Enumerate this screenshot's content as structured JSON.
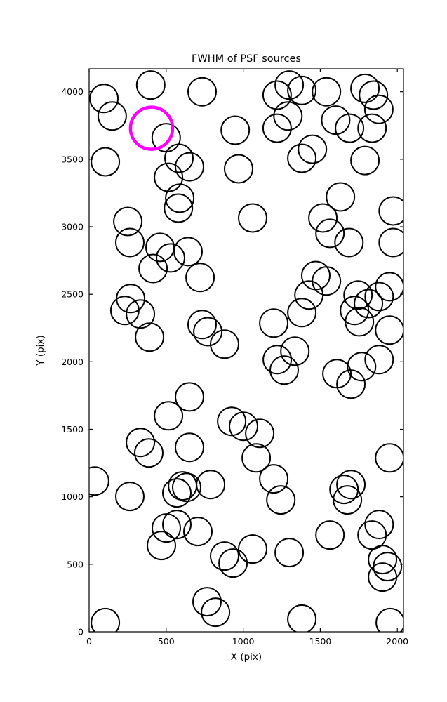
{
  "figure": {
    "title": "FWHM of PSF sources",
    "xlabel": "X (pix)",
    "ylabel": "Y (pix)"
  },
  "chart_data": {
    "type": "scatter",
    "title": "FWHM of PSF sources",
    "xlabel": "X (pix)",
    "ylabel": "Y (pix)",
    "xlim": [
      0,
      2040
    ],
    "ylim": [
      0,
      4170
    ],
    "x_ticks": [
      0,
      500,
      1000,
      1500,
      2000
    ],
    "y_ticks": [
      0,
      500,
      1000,
      1500,
      2000,
      2500,
      3000,
      3500,
      4000
    ],
    "grid": false,
    "legend": false,
    "marker": {
      "shape": "circle",
      "fill": "none",
      "stroke": "#000000",
      "stroke_width": 2,
      "radius_px": 20
    },
    "highlight": {
      "x": 405,
      "y": 3730,
      "stroke": "#ff00ff",
      "stroke_width": 4.5,
      "radius_px": 30,
      "note": "magenta-circled PSF source"
    },
    "points": [
      [
        96,
        3950
      ],
      [
        150,
        3820
      ],
      [
        400,
        4050
      ],
      [
        733,
        4000
      ],
      [
        500,
        3660
      ],
      [
        1220,
        3975
      ],
      [
        1298,
        4050
      ],
      [
        1380,
        4010
      ],
      [
        1540,
        4000
      ],
      [
        1790,
        4025
      ],
      [
        1845,
        3975
      ],
      [
        1880,
        3870
      ],
      [
        1290,
        3820
      ],
      [
        1220,
        3730
      ],
      [
        1600,
        3790
      ],
      [
        1690,
        3730
      ],
      [
        1836,
        3730
      ],
      [
        948,
        3715
      ],
      [
        583,
        3507
      ],
      [
        651,
        3444
      ],
      [
        105,
        3481
      ],
      [
        515,
        3366
      ],
      [
        970,
        3429
      ],
      [
        1380,
        3507
      ],
      [
        1449,
        3574
      ],
      [
        1790,
        3491
      ],
      [
        588,
        3211
      ],
      [
        579,
        3138
      ],
      [
        1061,
        3065
      ],
      [
        251,
        3039
      ],
      [
        264,
        2883
      ],
      [
        460,
        2847
      ],
      [
        528,
        2769
      ],
      [
        642,
        2816
      ],
      [
        415,
        2691
      ],
      [
        720,
        2624
      ],
      [
        1517,
        3065
      ],
      [
        1631,
        3221
      ],
      [
        1563,
        2951
      ],
      [
        1686,
        2883
      ],
      [
        1973,
        3117
      ],
      [
        1973,
        2883
      ],
      [
        269,
        2468
      ],
      [
        232,
        2380
      ],
      [
        333,
        2354
      ],
      [
        733,
        2276
      ],
      [
        770,
        2223
      ],
      [
        879,
        2130
      ],
      [
        392,
        2182
      ],
      [
        1198,
        2286
      ],
      [
        1380,
        2364
      ],
      [
        1471,
        2639
      ],
      [
        1540,
        2598
      ],
      [
        1426,
        2494
      ],
      [
        1745,
        2494
      ],
      [
        1722,
        2380
      ],
      [
        1754,
        2296
      ],
      [
        1813,
        2431
      ],
      [
        1882,
        2483
      ],
      [
        1950,
        2556
      ],
      [
        1221,
        2016
      ],
      [
        1266,
        1938
      ],
      [
        1335,
        2078
      ],
      [
        1608,
        1912
      ],
      [
        1699,
        1834
      ],
      [
        1768,
        1964
      ],
      [
        1882,
        2016
      ],
      [
        1950,
        2234
      ],
      [
        651,
        1740
      ],
      [
        515,
        1600
      ],
      [
        333,
        1403
      ],
      [
        387,
        1325
      ],
      [
        651,
        1366
      ],
      [
        925,
        1559
      ],
      [
        1002,
        1522
      ],
      [
        1107,
        1470
      ],
      [
        1084,
        1288
      ],
      [
        1198,
        1133
      ],
      [
        788,
        1091
      ],
      [
        606,
        1081
      ],
      [
        36,
        1117
      ],
      [
        264,
        1003
      ],
      [
        569,
        1029
      ],
      [
        633,
        1070
      ],
      [
        1244,
        977
      ],
      [
        1654,
        1055
      ],
      [
        1699,
        1091
      ],
      [
        1676,
        977
      ],
      [
        501,
        769
      ],
      [
        569,
        795
      ],
      [
        706,
        743
      ],
      [
        469,
        639
      ],
      [
        879,
        561
      ],
      [
        934,
        509
      ],
      [
        1061,
        613
      ],
      [
        1298,
        587
      ],
      [
        1563,
        717
      ],
      [
        1882,
        795
      ],
      [
        1836,
        717
      ],
      [
        1904,
        535
      ],
      [
        1936,
        483
      ],
      [
        1950,
        1288
      ],
      [
        765,
        223
      ],
      [
        820,
        145
      ],
      [
        105,
        68
      ],
      [
        1380,
        94
      ],
      [
        1954,
        68
      ],
      [
        1904,
        405
      ]
    ]
  }
}
